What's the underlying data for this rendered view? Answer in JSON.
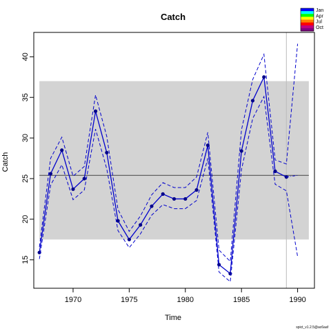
{
  "chart_data": {
    "type": "line",
    "title": "Catch",
    "xlabel": "Time",
    "ylabel": "Catch",
    "xlim": [
      1966.5,
      1991.5
    ],
    "ylim": [
      11.5,
      43.0
    ],
    "x_ticks": [
      1970,
      1975,
      1980,
      1985,
      1990
    ],
    "y_ticks": [
      15,
      20,
      25,
      30,
      35,
      40
    ],
    "grid": false,
    "legend": {
      "position": "top-right",
      "entries": [
        "Jan",
        "Apr",
        "Jul",
        "Oct"
      ]
    },
    "legend_colors": [
      "#0000ff",
      "#00ffff",
      "#00ff00",
      "#ffff00",
      "#ff8000",
      "#ff0000",
      "#c00080",
      "#800080"
    ],
    "band": {
      "y_low": 17.5,
      "y_high": 37.0,
      "x_start": 1967,
      "x_end": 1991,
      "color": "#d3d3d3"
    },
    "reference_line": {
      "y": 25.4,
      "x_start": 1967,
      "x_end": 1991,
      "color": "#555555"
    },
    "vertical_line": {
      "x": 1989,
      "color": "#bbbbbb"
    },
    "series": [
      {
        "role": "observed",
        "style": "solid-with-points",
        "color": "#0000cc",
        "x": [
          1967,
          1968,
          1969,
          1970,
          1971,
          1972,
          1973,
          1974,
          1975,
          1976,
          1977,
          1978,
          1979,
          1980,
          1981,
          1982,
          1983,
          1984,
          1985,
          1986,
          1987,
          1988,
          1989
        ],
        "values": [
          15.9,
          25.6,
          28.5,
          23.7,
          25.0,
          33.3,
          28.2,
          19.8,
          17.5,
          19.3,
          21.6,
          23.1,
          22.5,
          22.5,
          23.6,
          29.1,
          14.4,
          13.3,
          28.4,
          34.6,
          37.5,
          25.9,
          25.2
        ]
      },
      {
        "role": "upper",
        "style": "dashed",
        "color": "#0000cc",
        "x": [
          1967,
          1968,
          1969,
          1970,
          1971,
          1972,
          1973,
          1974,
          1975,
          1976,
          1977,
          1978,
          1979,
          1980,
          1981,
          1982,
          1983,
          1984,
          1985,
          1986,
          1987,
          1988,
          1989,
          1990
        ],
        "values": [
          16.6,
          27.5,
          30.1,
          25.3,
          26.5,
          35.3,
          30.2,
          21.2,
          18.5,
          20.4,
          23.0,
          24.5,
          23.9,
          23.9,
          25.2,
          30.7,
          16.2,
          14.8,
          31.0,
          37.2,
          40.3,
          27.3,
          26.8,
          41.6
        ]
      },
      {
        "role": "lower",
        "style": "dashed",
        "color": "#0000cc",
        "x": [
          1967,
          1968,
          1969,
          1970,
          1971,
          1972,
          1973,
          1974,
          1975,
          1976,
          1977,
          1978,
          1979,
          1980,
          1981,
          1982,
          1983,
          1984,
          1985,
          1986,
          1987,
          1988,
          1989,
          1990
        ],
        "values": [
          15.1,
          24.2,
          26.7,
          22.4,
          23.6,
          31.1,
          26.2,
          18.6,
          16.5,
          18.2,
          20.5,
          21.8,
          21.3,
          21.3,
          22.3,
          27.5,
          13.5,
          12.3,
          26.1,
          32.4,
          35.1,
          24.3,
          23.5,
          15.4
        ]
      },
      {
        "role": "forecast",
        "style": "dash-dot",
        "color": "#0000cc",
        "x": [
          1989,
          1990
        ],
        "values": [
          25.2,
          25.4
        ]
      }
    ]
  },
  "footer": {
    "version": "spict_v1.2.5@ac6aaf"
  }
}
